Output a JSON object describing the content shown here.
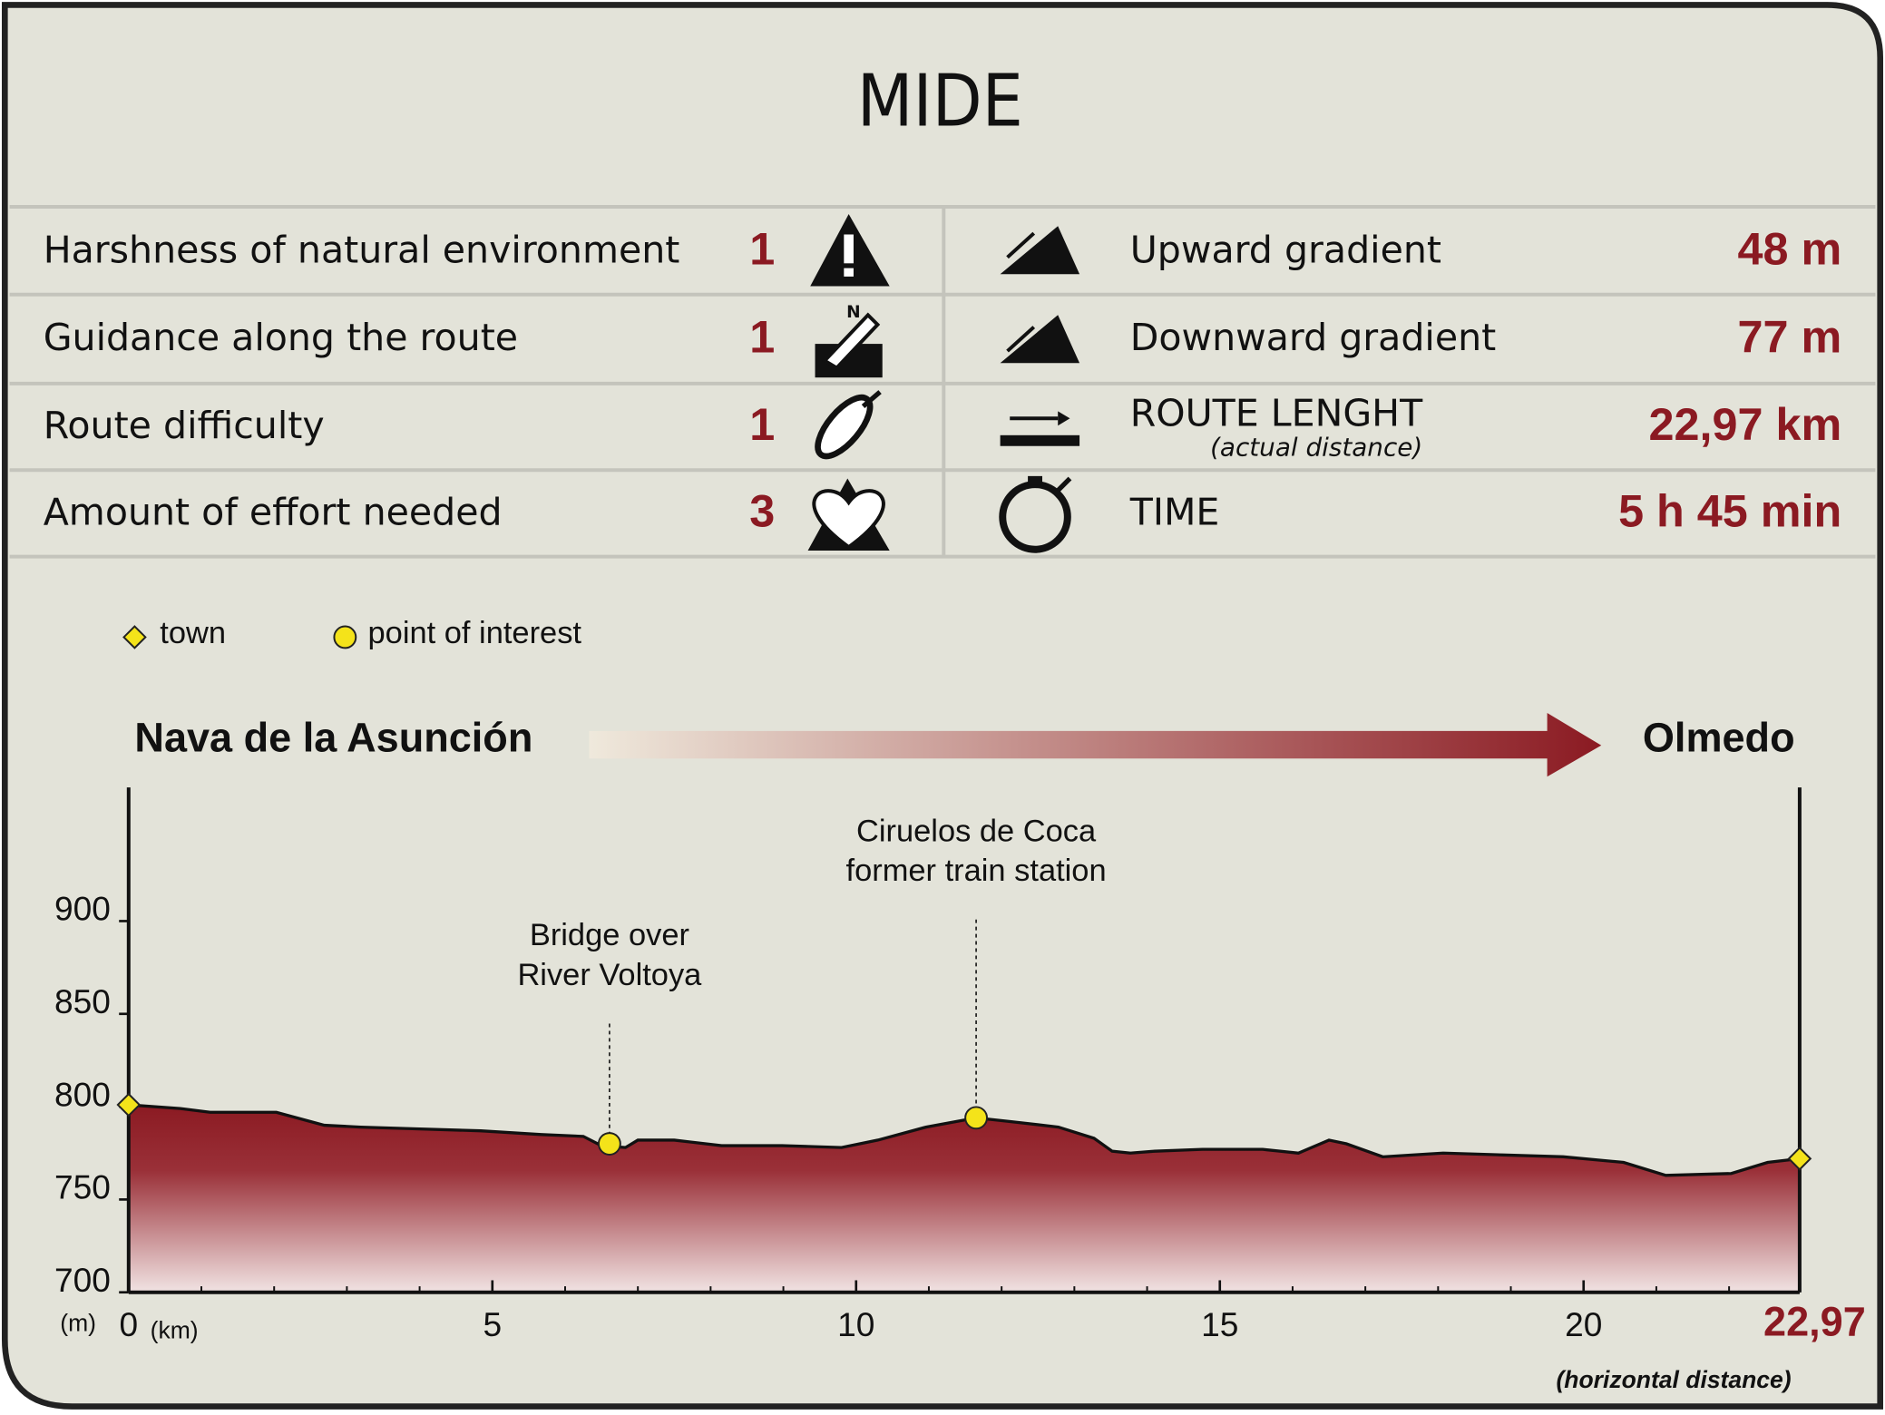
{
  "title": "MIDE",
  "mide": [
    {
      "label": "Harshness of natural environment",
      "value": "1"
    },
    {
      "label": "Guidance along the route",
      "value": "1"
    },
    {
      "label": "Route difficulty",
      "value": "1"
    },
    {
      "label": "Amount of effort needed",
      "value": "3"
    }
  ],
  "stats": [
    {
      "label": "Upward gradient",
      "value": "48 m"
    },
    {
      "label": "Downward gradient",
      "value": "77 m"
    },
    {
      "label": "ROUTE LENGHT",
      "note": "(actual distance)",
      "value": "22,97 km"
    },
    {
      "label": "TIME",
      "value": "5 h 45 min"
    }
  ],
  "chart_data": {
    "type": "area",
    "legend": {
      "town": "town",
      "poi": "point of interest"
    },
    "route": {
      "start": "Nava de la Asunción",
      "end": "Olmedo"
    },
    "x": [
      0,
      0.71,
      1.12,
      2.03,
      2.69,
      3.19,
      4.0,
      4.84,
      5.67,
      6.25,
      6.5,
      6.83,
      7.0,
      7.5,
      8.15,
      8.98,
      9.8,
      10.3,
      10.96,
      11.65,
      12.12,
      12.78,
      13.27,
      13.52,
      13.77,
      14.1,
      14.76,
      15.59,
      16.08,
      16.5,
      16.74,
      17.24,
      18.07,
      18.89,
      19.72,
      20.55,
      21.13,
      22.03,
      22.53,
      22.97
    ],
    "values": [
      801,
      799,
      797,
      797,
      790,
      789,
      788,
      787,
      785,
      784,
      779,
      778,
      782,
      782,
      779,
      779,
      778,
      782,
      789,
      794,
      792,
      789,
      783,
      776,
      775,
      776,
      777,
      777,
      775,
      782,
      780,
      773,
      775,
      774,
      773,
      770,
      763,
      764,
      770,
      772
    ],
    "color": "#8b1a22",
    "towns": [
      {
        "x": 0,
        "y": 801
      },
      {
        "x": 22.97,
        "y": 772
      }
    ],
    "annotations": [
      {
        "lines": [
          "Bridge over",
          "River Voltoya"
        ],
        "x": 6.61,
        "y": 780
      },
      {
        "lines": [
          "Ciruelos de Coca",
          "former train station"
        ],
        "x": 11.65,
        "y": 794
      }
    ],
    "xlim": [
      0,
      22.97
    ],
    "ylim": [
      700,
      972
    ],
    "xticks": [
      0,
      5,
      10,
      15,
      20,
      {
        "value": 22.97,
        "label": "22,97"
      }
    ],
    "xminorticks": [
      1,
      2,
      3,
      4,
      6,
      7,
      8,
      9,
      11,
      12,
      13,
      14,
      16,
      17,
      18,
      19,
      21,
      22
    ],
    "yticks": [
      700,
      750,
      800,
      850,
      900
    ],
    "ylabel": "(m)",
    "xunit": "(km)",
    "xlabel": "(horizontal distance)"
  }
}
